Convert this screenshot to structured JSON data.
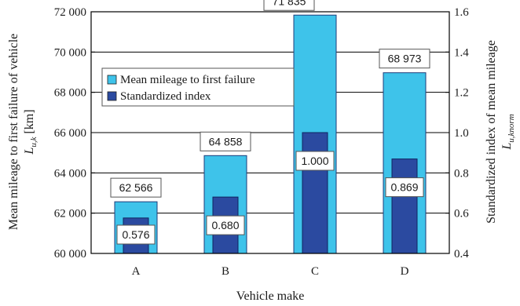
{
  "chart_data": {
    "type": "bar",
    "categories": [
      "A",
      "B",
      "C",
      "D"
    ],
    "series": [
      {
        "name": "Mean mileage to first failure",
        "axis": "left",
        "values": [
          62566,
          64858,
          71835,
          68973
        ],
        "labels": [
          "62 566",
          "64 858",
          "71 835",
          "68 973"
        ],
        "color": "#3ec3ea"
      },
      {
        "name": "Standardized index",
        "axis": "right",
        "values": [
          0.576,
          0.68,
          1.0,
          0.869
        ],
        "labels": [
          "0.576",
          "0.680",
          "1.000",
          "0.869"
        ],
        "color": "#2b4aa0"
      }
    ],
    "xlabel": "Vehicle make",
    "ylabel_left": "Mean mileage to first failure of vehicle",
    "ylabel_left_symbol": "L",
    "ylabel_left_subscript": "u,k",
    "ylabel_left_unit": "[km]",
    "ylabel_right": "Standardized index of mean mileage",
    "ylabel_right_symbol": "L",
    "ylabel_right_subscript": "u,knorm",
    "ylim_left": [
      60000,
      72000
    ],
    "yticks_left": [
      "60 000",
      "62 000",
      "64 000",
      "66 000",
      "68 000",
      "70 000",
      "72 000"
    ],
    "ylim_right": [
      0.4,
      1.6
    ],
    "yticks_right": [
      "0.4",
      "0.6",
      "0.8",
      "1.0",
      "1.2",
      "1.4",
      "1.6"
    ],
    "grid": true,
    "legend_position": "upper-left"
  }
}
